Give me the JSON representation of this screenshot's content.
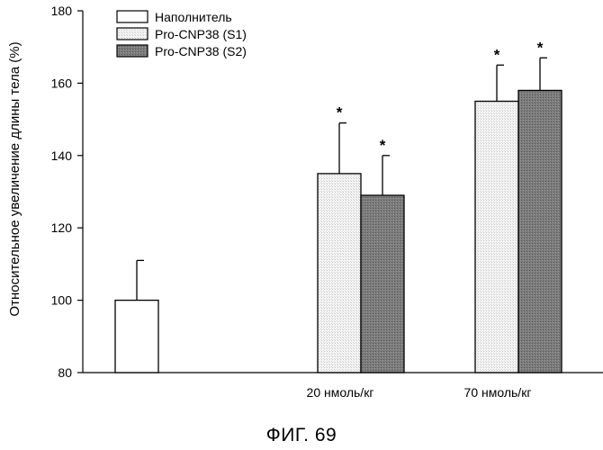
{
  "chart_data": {
    "type": "bar",
    "ylabel": "Относительное увеличение длины тела (%)",
    "xlabel": "",
    "ylim": [
      80,
      180
    ],
    "yticks": [
      80,
      100,
      120,
      140,
      160,
      180
    ],
    "grid": false,
    "legend_position": "top-left",
    "categories": [
      "",
      "20 нмоль/кг",
      "70 нмоль/кг"
    ],
    "series": [
      {
        "name": "Наполнитель",
        "fill": "#ffffff",
        "values": [
          100,
          null,
          null
        ],
        "errors": [
          11,
          null,
          null
        ],
        "significant": [
          false,
          false,
          false
        ]
      },
      {
        "name": "Pro-CNP38 (S1)",
        "fill": "#f2f2f2",
        "values": [
          null,
          135,
          155
        ],
        "errors": [
          null,
          14,
          10
        ],
        "significant": [
          false,
          true,
          true
        ]
      },
      {
        "name": "Pro-CNP38 (S2)",
        "fill": "#7a7a7a",
        "values": [
          null,
          129,
          158
        ],
        "errors": [
          null,
          11,
          9
        ],
        "significant": [
          false,
          true,
          true
        ]
      }
    ],
    "significance_marker": "*"
  },
  "caption": "ФИГ. 69"
}
